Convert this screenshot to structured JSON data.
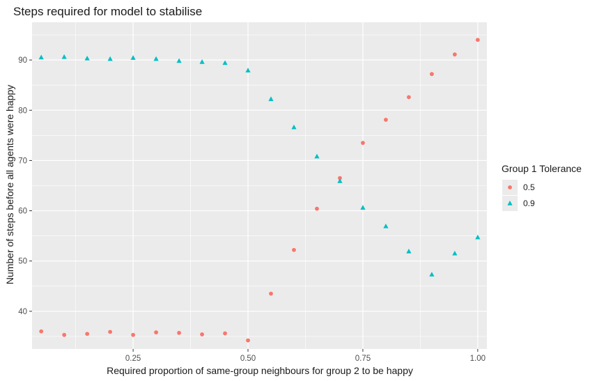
{
  "chart_data": {
    "type": "scatter",
    "title": "Steps required for model to stabilise",
    "xlabel": "Required proportion of same-group neighbours for group 2 to be happy",
    "ylabel": "Number of steps before all agents were happy",
    "xlim": [
      0.03,
      1.02
    ],
    "ylim": [
      32.5,
      97.5
    ],
    "x_ticks": [
      0.25,
      0.5,
      0.75,
      1.0
    ],
    "x_tick_labels": [
      "0.25",
      "0.50",
      "0.75",
      "1.00"
    ],
    "y_ticks": [
      40,
      50,
      60,
      70,
      80,
      90
    ],
    "y_tick_labels": [
      "40",
      "50",
      "60",
      "70",
      "80",
      "90"
    ],
    "grid": true,
    "legend": {
      "title": "Group 1 Tolerance",
      "position": "right"
    },
    "series": [
      {
        "name": "0.5",
        "color": "#F8766D",
        "marker": "circle",
        "x": [
          0.05,
          0.1,
          0.15,
          0.2,
          0.25,
          0.3,
          0.35,
          0.4,
          0.45,
          0.5,
          0.55,
          0.6,
          0.65,
          0.7,
          0.75,
          0.8,
          0.85,
          0.9,
          0.95,
          1.0
        ],
        "y": [
          36.0,
          35.3,
          35.5,
          35.9,
          35.3,
          35.8,
          35.7,
          35.4,
          35.6,
          34.2,
          43.5,
          52.2,
          60.4,
          66.5,
          73.5,
          78.1,
          82.6,
          87.2,
          91.1,
          94.0
        ]
      },
      {
        "name": "0.9",
        "color": "#00BFC4",
        "marker": "triangle",
        "x": [
          0.05,
          0.1,
          0.15,
          0.2,
          0.25,
          0.3,
          0.35,
          0.4,
          0.45,
          0.5,
          0.55,
          0.6,
          0.65,
          0.7,
          0.75,
          0.8,
          0.85,
          0.9,
          0.95,
          1.0
        ],
        "y": [
          90.5,
          90.6,
          90.3,
          90.2,
          90.4,
          90.2,
          89.8,
          89.6,
          89.4,
          87.9,
          82.2,
          76.6,
          70.8,
          65.9,
          60.6,
          56.9,
          51.9,
          47.3,
          51.5,
          54.7
        ]
      }
    ]
  }
}
